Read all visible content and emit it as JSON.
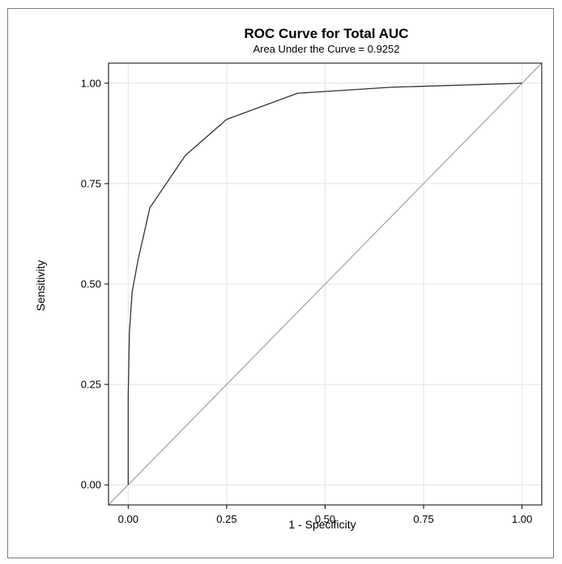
{
  "chart_data": {
    "type": "line",
    "title": "ROC Curve for Total AUC",
    "subtitle": "Area Under the Curve = 0.9252",
    "xlabel": "1 - Specificity",
    "ylabel": "Sensitivity",
    "xlim": [
      -0.05,
      1.05
    ],
    "ylim": [
      -0.05,
      1.05
    ],
    "xticks": [
      0.0,
      0.25,
      0.5,
      0.75,
      1.0
    ],
    "yticks": [
      0.0,
      0.25,
      0.5,
      0.75,
      1.0
    ],
    "xtick_labels": [
      "0.00",
      "0.25",
      "0.50",
      "0.75",
      "1.00"
    ],
    "ytick_labels": [
      "0.00",
      "0.25",
      "0.50",
      "0.75",
      "1.00"
    ],
    "grid": true,
    "series": [
      {
        "color": "#333333",
        "x": [
          0.0,
          0.0,
          0.003,
          0.01,
          0.025,
          0.055,
          0.145,
          0.25,
          0.43,
          0.67,
          1.0
        ],
        "y": [
          0.0,
          0.22,
          0.38,
          0.48,
          0.56,
          0.69,
          0.82,
          0.91,
          0.975,
          0.99,
          1.0
        ]
      },
      {
        "color": "#a0a0a0",
        "x": [
          -0.05,
          1.05
        ],
        "y": [
          -0.05,
          1.05
        ]
      }
    ]
  }
}
